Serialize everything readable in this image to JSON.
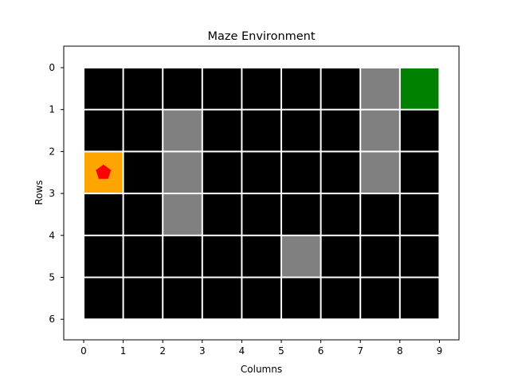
{
  "title": "Maze Environment",
  "xlabel": "Columns",
  "ylabel": "Rows",
  "x_ticks": [
    "0",
    "1",
    "2",
    "3",
    "4",
    "5",
    "6",
    "7",
    "8",
    "9"
  ],
  "y_ticks": [
    "0",
    "1",
    "2",
    "3",
    "4",
    "5",
    "6"
  ],
  "grid": {
    "rows": 6,
    "cols": 9,
    "cells": [
      [
        "empty",
        "empty",
        "empty",
        "empty",
        "empty",
        "empty",
        "empty",
        "wall",
        "goal"
      ],
      [
        "empty",
        "empty",
        "wall",
        "empty",
        "empty",
        "empty",
        "empty",
        "wall",
        "empty"
      ],
      [
        "agent",
        "empty",
        "wall",
        "empty",
        "empty",
        "empty",
        "empty",
        "wall",
        "empty"
      ],
      [
        "empty",
        "empty",
        "wall",
        "empty",
        "empty",
        "empty",
        "empty",
        "empty",
        "empty"
      ],
      [
        "empty",
        "empty",
        "empty",
        "empty",
        "empty",
        "wall",
        "empty",
        "empty",
        "empty"
      ],
      [
        "empty",
        "empty",
        "empty",
        "empty",
        "empty",
        "empty",
        "empty",
        "empty",
        "empty"
      ]
    ]
  },
  "agent_position": {
    "row": 2,
    "col": 0
  },
  "goal_position": {
    "row": 0,
    "col": 8
  },
  "colors": {
    "empty": "#000000",
    "wall": "#808080",
    "goal": "#008000",
    "agent_cell": "#ffa500",
    "agent_marker": "#ff0000",
    "grid_line": "#ffffff",
    "background": "#ffffff",
    "axes": "#000000"
  },
  "icons": {
    "agent": "red-pentagon-marker"
  }
}
